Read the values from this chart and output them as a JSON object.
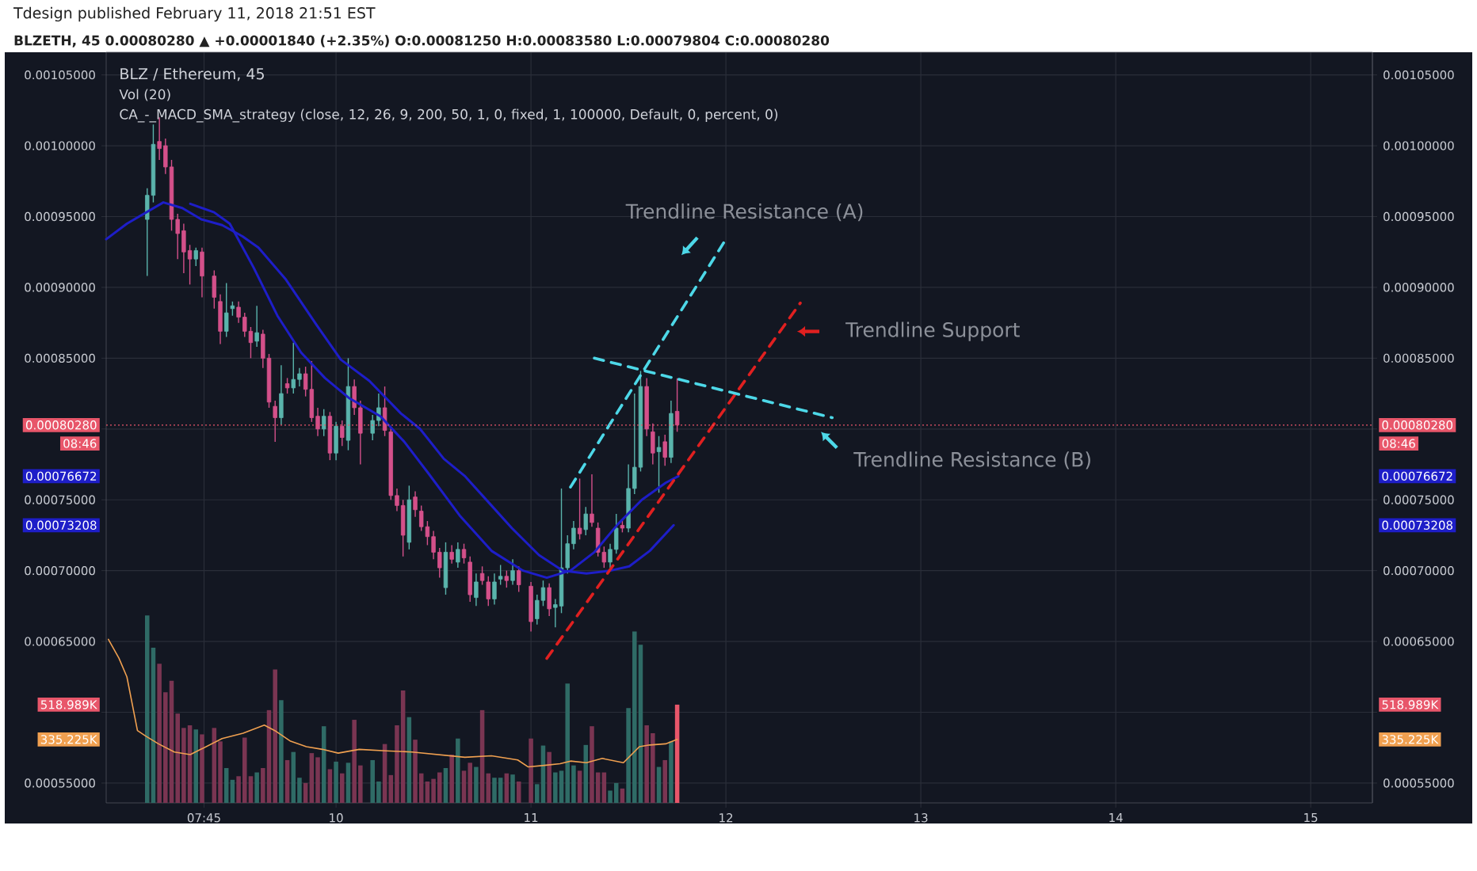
{
  "chart_data": {
    "type": "candlestick",
    "title": "Tdesign published February 11, 2018 21:51 EST",
    "subtitle": "BLZETH, 45 0.00080280 ▲ +0.00001840 (+2.35%) O:0.00081250 H:0.00083580 L:0.00079804 C:0.00080280",
    "annotations": [
      "BLZ / Ethereum, 45",
      "Vol (20)",
      "CA_-_MACD_SMA_strategy (close, 12, 26, 9, 200, 50, 1, 0, fixed, 1, 100000, Default, 0, percent, 0)",
      "08:46",
      "Trendline Resistance (A)",
      "Trendline Support",
      "Trendline Resistance (B)"
    ],
    "x": [
      "2018-02-09T00:45",
      "2018-02-09T01:30",
      "2018-02-09T02:15",
      "2018-02-09T03:00",
      "2018-02-09T03:45",
      "2018-02-09T04:30",
      "2018-02-09T05:15",
      "2018-02-09T06:00",
      "2018-02-09T06:45",
      "2018-02-09T07:30",
      "2018-02-09T09:00",
      "2018-02-09T09:45",
      "2018-02-09T10:30",
      "2018-02-09T11:15",
      "2018-02-09T12:00",
      "2018-02-09T12:45",
      "2018-02-09T13:30",
      "2018-02-09T14:15",
      "2018-02-09T15:00",
      "2018-02-09T15:45",
      "2018-02-09T16:30",
      "2018-02-09T17:15",
      "2018-02-09T18:00",
      "2018-02-09T18:45",
      "2018-02-09T19:30",
      "2018-02-09T20:15",
      "2018-02-09T21:00",
      "2018-02-09T21:45",
      "2018-02-09T22:30",
      "2018-02-09T23:15",
      "2018-02-10T00:00",
      "2018-02-10T00:45",
      "2018-02-10T01:30",
      "2018-02-10T02:15",
      "2018-02-10T03:00",
      "2018-02-10T04:30",
      "2018-02-10T05:15",
      "2018-02-10T06:00",
      "2018-02-10T06:45",
      "2018-02-10T07:30",
      "2018-02-10T08:15",
      "2018-02-10T09:00",
      "2018-02-10T09:45",
      "2018-02-10T10:30",
      "2018-02-10T11:15",
      "2018-02-10T12:00",
      "2018-02-10T12:45",
      "2018-02-10T13:30",
      "2018-02-10T14:15",
      "2018-02-10T15:00",
      "2018-02-10T15:45",
      "2018-02-10T16:30",
      "2018-02-10T17:15",
      "2018-02-10T18:00",
      "2018-02-10T18:45",
      "2018-02-10T19:30",
      "2018-02-10T20:15",
      "2018-02-10T21:00",
      "2018-02-10T21:45",
      "2018-02-10T22:30",
      "2018-02-11T00:00",
      "2018-02-11T00:45",
      "2018-02-11T01:30",
      "2018-02-11T02:15",
      "2018-02-11T03:00",
      "2018-02-11T03:45",
      "2018-02-11T04:30",
      "2018-02-11T05:15",
      "2018-02-11T06:00",
      "2018-02-11T06:45",
      "2018-02-11T07:30",
      "2018-02-11T08:15",
      "2018-02-11T09:00",
      "2018-02-11T09:45",
      "2018-02-11T10:30",
      "2018-02-11T11:15",
      "2018-02-11T12:00",
      "2018-02-11T12:45",
      "2018-02-11T13:30",
      "2018-02-11T14:15",
      "2018-02-11T15:00",
      "2018-02-11T15:45",
      "2018-02-11T16:30",
      "2018-02-11T17:15",
      "2018-02-11T18:00"
    ],
    "ohlc": [
      [
        0.000948,
        0.00097,
        0.000908,
        0.000965
      ],
      [
        0.000965,
        0.001015,
        0.00096,
        0.001001
      ],
      [
        0.001003,
        0.00102,
        0.00099,
        0.000998
      ],
      [
        0.001,
        0.001005,
        0.00098,
        0.000985
      ],
      [
        0.000985,
        0.00099,
        0.00094,
        0.000948
      ],
      [
        0.000948,
        0.000952,
        0.00092,
        0.000938
      ],
      [
        0.00094,
        0.000945,
        0.00091,
        0.000925
      ],
      [
        0.000926,
        0.00093,
        0.000902,
        0.00092
      ],
      [
        0.00092,
        0.000928,
        0.000915,
        0.000926
      ],
      [
        0.000925,
        0.000928,
        0.000893,
        0.000908
      ],
      [
        0.000908,
        0.000912,
        0.000885,
        0.000893
      ],
      [
        0.00089,
        0.000895,
        0.00086,
        0.000869
      ],
      [
        0.000869,
        0.000903,
        0.000865,
        0.000882
      ],
      [
        0.000885,
        0.00089,
        0.00088,
        0.000887
      ],
      [
        0.000886,
        0.00089,
        0.000875,
        0.000879
      ],
      [
        0.000879,
        0.000882,
        0.000865,
        0.000869
      ],
      [
        0.000869,
        0.000872,
        0.00085,
        0.000861
      ],
      [
        0.000862,
        0.000887,
        0.000858,
        0.000868
      ],
      [
        0.000867,
        0.00087,
        0.000843,
        0.00085
      ],
      [
        0.00085,
        0.000853,
        0.000815,
        0.000819
      ],
      [
        0.000816,
        0.00082,
        0.000791,
        0.000808
      ],
      [
        0.000808,
        0.000845,
        0.000803,
        0.000825
      ],
      [
        0.000832,
        0.000836,
        0.000825,
        0.000829
      ],
      [
        0.000829,
        0.000861,
        0.000825,
        0.000835
      ],
      [
        0.000835,
        0.000843,
        0.00083,
        0.000839
      ],
      [
        0.000839,
        0.000844,
        0.000823,
        0.000828
      ],
      [
        0.000828,
        0.000848,
        0.000805,
        0.000808
      ],
      [
        0.000809,
        0.000815,
        0.000795,
        0.0008
      ],
      [
        0.0008,
        0.000814,
        0.000795,
        0.000809
      ],
      [
        0.000809,
        0.000812,
        0.000778,
        0.000783
      ],
      [
        0.000783,
        0.000805,
        0.000778,
        0.000802
      ],
      [
        0.000802,
        0.000806,
        0.000788,
        0.000794
      ],
      [
        0.000792,
        0.00085,
        0.000785,
        0.00083
      ],
      [
        0.00083,
        0.000835,
        0.00081,
        0.000815
      ],
      [
        0.000815,
        0.00082,
        0.000775,
        0.000797
      ],
      [
        0.000797,
        0.00081,
        0.000792,
        0.000806
      ],
      [
        0.000806,
        0.000825,
        0.000802,
        0.000815
      ],
      [
        0.000815,
        0.00083,
        0.000795,
        0.000799
      ],
      [
        0.000798,
        0.000802,
        0.00075,
        0.000753
      ],
      [
        0.000753,
        0.000758,
        0.000742,
        0.000746
      ],
      [
        0.000746,
        0.00075,
        0.00071,
        0.000725
      ],
      [
        0.00072,
        0.00076,
        0.000715,
        0.00075
      ],
      [
        0.000752,
        0.000756,
        0.000738,
        0.000743
      ],
      [
        0.000742,
        0.000746,
        0.000728,
        0.000731
      ],
      [
        0.000731,
        0.000735,
        0.000718,
        0.000724
      ],
      [
        0.000724,
        0.000728,
        0.000708,
        0.000713
      ],
      [
        0.000713,
        0.000716,
        0.000695,
        0.000702
      ],
      [
        0.000688,
        0.00072,
        0.000683,
        0.000713
      ],
      [
        0.000713,
        0.000718,
        0.000705,
        0.000708
      ],
      [
        0.000706,
        0.00072,
        0.000702,
        0.000715
      ],
      [
        0.000715,
        0.000719,
        0.000705,
        0.000709
      ],
      [
        0.000706,
        0.00071,
        0.000678,
        0.000683
      ],
      [
        0.000681,
        0.000698,
        0.000675,
        0.000692
      ],
      [
        0.000698,
        0.000703,
        0.00069,
        0.000693
      ],
      [
        0.000692,
        0.000696,
        0.000675,
        0.00068
      ],
      [
        0.00068,
        0.000698,
        0.000676,
        0.000692
      ],
      [
        0.000694,
        0.000704,
        0.00069,
        0.000696
      ],
      [
        0.000696,
        0.0007,
        0.000688,
        0.000693
      ],
      [
        0.000693,
        0.000708,
        0.00069,
        0.0007
      ],
      [
        0.0007,
        0.000703,
        0.000685,
        0.00069
      ],
      [
        0.000689,
        0.000692,
        0.000657,
        0.000664
      ],
      [
        0.000666,
        0.000683,
        0.000662,
        0.000679
      ],
      [
        0.000679,
        0.000693,
        0.000675,
        0.000688
      ],
      [
        0.000688,
        0.000691,
        0.000668,
        0.000673
      ],
      [
        0.000674,
        0.00068,
        0.00066,
        0.000676
      ],
      [
        0.000675,
        0.000758,
        0.00067,
        0.000702
      ],
      [
        0.000702,
        0.000725,
        0.000698,
        0.000719
      ],
      [
        0.000719,
        0.000735,
        0.000715,
        0.00073
      ],
      [
        0.00073,
        0.000765,
        0.000722,
        0.000726
      ],
      [
        0.000729,
        0.000745,
        0.000725,
        0.00074
      ],
      [
        0.00074,
        0.000768,
        0.000731,
        0.000734
      ],
      [
        0.00073,
        0.000734,
        0.00071,
        0.000713
      ],
      [
        0.000713,
        0.000717,
        0.000702,
        0.000706
      ],
      [
        0.000706,
        0.000719,
        0.000702,
        0.000715
      ],
      [
        0.000715,
        0.00074,
        0.000712,
        0.00073
      ],
      [
        0.000732,
        0.000736,
        0.000727,
        0.00073
      ],
      [
        0.00073,
        0.000775,
        0.000727,
        0.000758
      ],
      [
        0.000758,
        0.000825,
        0.000754,
        0.000773
      ],
      [
        0.000773,
        0.000841,
        0.00077,
        0.00083
      ],
      [
        0.00083,
        0.000836,
        0.000795,
        0.0008
      ],
      [
        0.000798,
        0.000804,
        0.000775,
        0.000783
      ],
      [
        0.000784,
        0.000795,
        0.000755,
        0.000787
      ],
      [
        0.000791,
        0.000796,
        0.000774,
        0.00078
      ],
      [
        0.00078,
        0.00082,
        0.000776,
        0.000811
      ],
      [
        0.0008125,
        0.0008358,
        0.00079804,
        0.0008028
      ]
    ],
    "colors": [
      "#5ab4ac",
      "#5ab4ac",
      "#d4508a",
      "#d4508a",
      "#d4508a",
      "#d4508a",
      "#d4508a",
      "#d4508a",
      "#5ab4ac",
      "#d4508a",
      "#d4508a",
      "#d4508a",
      "#5ab4ac",
      "#5ab4ac",
      "#d4508a",
      "#d4508a",
      "#d4508a",
      "#5ab4ac",
      "#d4508a",
      "#d4508a",
      "#d4508a",
      "#5ab4ac",
      "#d4508a",
      "#5ab4ac",
      "#5ab4ac",
      "#d4508a",
      "#d4508a",
      "#d4508a",
      "#5ab4ac",
      "#d4508a",
      "#5ab4ac",
      "#d4508a",
      "#5ab4ac",
      "#d4508a",
      "#d4508a",
      "#5ab4ac",
      "#5ab4ac",
      "#d4508a",
      "#d4508a",
      "#d4508a",
      "#d4508a",
      "#5ab4ac",
      "#d4508a",
      "#d4508a",
      "#d4508a",
      "#d4508a",
      "#d4508a",
      "#5ab4ac",
      "#d4508a",
      "#5ab4ac",
      "#d4508a",
      "#d4508a",
      "#5ab4ac",
      "#d4508a",
      "#d4508a",
      "#5ab4ac",
      "#5ab4ac",
      "#d4508a",
      "#5ab4ac",
      "#d4508a",
      "#d4508a",
      "#5ab4ac",
      "#5ab4ac",
      "#d4508a",
      "#5ab4ac",
      "#5ab4ac",
      "#5ab4ac",
      "#5ab4ac",
      "#d4508a",
      "#5ab4ac",
      "#d4508a",
      "#d4508a",
      "#d4508a",
      "#5ab4ac",
      "#5ab4ac",
      "#d4508a",
      "#5ab4ac",
      "#5ab4ac",
      "#5ab4ac",
      "#d4508a",
      "#d4508a",
      "#5ab4ac",
      "#d4508a",
      "#5ab4ac",
      "#d4508a"
    ],
    "series": [
      {
        "type": "bar",
        "axis": "y3",
        "values": [
          990,
          820,
          735,
          585,
          645,
          472,
          396,
          410,
          388,
          362,
          396,
          325,
          184,
          122,
          141,
          345,
          141,
          161,
          184,
          490,
          705,
          543,
          226,
          269,
          133,
          105,
          263,
          241,
          405,
          178,
          218,
          156,
          212,
          439,
          198,
          226,
          113,
          311,
          147,
          410,
          594,
          453,
          334,
          156,
          113,
          127,
          161,
          184,
          255,
          340,
          170,
          212,
          190,
          490,
          156,
          133,
          133,
          156,
          150,
          113,
          340,
          99,
          303,
          269,
          161,
          170,
          631,
          198,
          170,
          306,
          405,
          161,
          161,
          65,
          105,
          76,
          501,
          906,
          835,
          410,
          368,
          190,
          226,
          325,
          518.989
        ],
        "colors": [
          "#2f6b66",
          "#2f6b66",
          "#7a3552",
          "#7a3552",
          "#7a3552",
          "#7a3552",
          "#7a3552",
          "#7a3552",
          "#2f6b66",
          "#7a3552",
          "#7a3552",
          "#7a3552",
          "#2f6b66",
          "#2f6b66",
          "#7a3552",
          "#7a3552",
          "#7a3552",
          "#2f6b66",
          "#7a3552",
          "#7a3552",
          "#7a3552",
          "#2f6b66",
          "#7a3552",
          "#2f6b66",
          "#2f6b66",
          "#7a3552",
          "#7a3552",
          "#7a3552",
          "#2f6b66",
          "#7a3552",
          "#2f6b66",
          "#7a3552",
          "#2f6b66",
          "#7a3552",
          "#7a3552",
          "#2f6b66",
          "#2f6b66",
          "#7a3552",
          "#7a3552",
          "#7a3552",
          "#7a3552",
          "#2f6b66",
          "#7a3552",
          "#7a3552",
          "#7a3552",
          "#7a3552",
          "#7a3552",
          "#2f6b66",
          "#7a3552",
          "#2f6b66",
          "#7a3552",
          "#7a3552",
          "#2f6b66",
          "#7a3552",
          "#7a3552",
          "#2f6b66",
          "#2f6b66",
          "#7a3552",
          "#2f6b66",
          "#7a3552",
          "#7a3552",
          "#2f6b66",
          "#2f6b66",
          "#7a3552",
          "#2f6b66",
          "#2f6b66",
          "#2f6b66",
          "#2f6b66",
          "#7a3552",
          "#2f6b66",
          "#7a3552",
          "#7a3552",
          "#7a3552",
          "#2f6b66",
          "#2f6b66",
          "#7a3552",
          "#2f6b66",
          "#2f6b66",
          "#2f6b66",
          "#7a3552",
          "#7a3552",
          "#2f6b66",
          "#7a3552",
          "#2f6b66",
          "#e8566a"
        ]
      },
      {
        "type": "line",
        "axis": "y3",
        "color": "#f0a050",
        "x": [
          "2018-02-08T19:58",
          "2018-02-08T21:16",
          "2018-02-08T22:15",
          "2018-02-08T23:33",
          "2018-02-09T00:32",
          "2018-02-09T02:08",
          "2018-02-09T04:06",
          "2018-02-09T06:03",
          "2018-02-09T07:21",
          "2018-02-09T09:58",
          "2018-02-09T12:33",
          "2018-02-09T15:10",
          "2018-02-09T16:28",
          "2018-02-09T18:24",
          "2018-02-09T20:21",
          "2018-02-09T22:19",
          "2018-02-10T00:16",
          "2018-02-10T02:51",
          "2018-02-10T06:07",
          "2018-02-10T09:22",
          "2018-02-10T12:37",
          "2018-02-10T15:52",
          "2018-02-10T19:08",
          "2018-02-10T22:22",
          "2018-02-10T23:40",
          "2018-02-11T01:38",
          "2018-02-11T03:35",
          "2018-02-11T04:52",
          "2018-02-11T06:50",
          "2018-02-11T08:47",
          "2018-02-11T11:23",
          "2018-02-11T13:21",
          "2018-02-11T14:38",
          "2018-02-11T16:35",
          "2018-02-11T18:00"
        ],
        "values": [
          864,
          765,
          666,
          382,
          354,
          312,
          269,
          255,
          283,
          340,
          368,
          411,
          382,
          326,
          297,
          283,
          263,
          283,
          275,
          269,
          255,
          241,
          249,
          227,
          190,
          198,
          207,
          221,
          212,
          235,
          212,
          297,
          306,
          312,
          335.225
        ]
      },
      {
        "type": "line",
        "color": "#1e1ec8",
        "x": [
          "2018-02-08T19:42",
          "2018-02-08T22:15",
          "2018-02-09T02:44",
          "2018-02-09T05:04",
          "2018-02-09T07:25",
          "2018-02-09T09:58",
          "2018-02-09T12:29",
          "2018-02-09T14:27",
          "2018-02-09T17:46",
          "2018-02-09T21:39",
          "2018-02-10T00:35",
          "2018-02-10T04:06",
          "2018-02-10T07:59",
          "2018-02-10T10:21",
          "2018-02-10T13:16",
          "2018-02-10T15:49",
          "2018-02-10T19:08",
          "2018-02-10T21:39",
          "2018-02-11T00:59",
          "2018-02-11T03:55",
          "2018-02-11T06:50",
          "2018-02-11T09:46",
          "2018-02-11T12:06",
          "2018-02-11T14:38",
          "2018-02-11T17:34"
        ],
        "values": [
          0.000934,
          0.000945,
          0.00096,
          0.000956,
          0.000948,
          0.000944,
          0.000936,
          0.000928,
          0.000906,
          0.000873,
          0.000849,
          0.000834,
          0.000811,
          0.0008,
          0.000779,
          0.000767,
          0.000746,
          0.00073,
          0.000711,
          0.0007,
          0.000698,
          0.0007,
          0.000703,
          0.000714,
          0.00073208
        ]
      },
      {
        "type": "line",
        "color": "#1e1ec8",
        "x": [
          "2018-02-09T06:03",
          "2018-02-09T08:59",
          "2018-02-09T10:55",
          "2018-02-09T13:51",
          "2018-02-09T16:47",
          "2018-02-09T19:42",
          "2018-02-09T22:38",
          "2018-02-10T01:34",
          "2018-02-10T05:28",
          "2018-02-10T08:24",
          "2018-02-10T11:20",
          "2018-02-10T15:13",
          "2018-02-10T19:08",
          "2018-02-10T23:01",
          "2018-02-11T01:57",
          "2018-02-11T04:52",
          "2018-02-11T07:48",
          "2018-02-11T10:44",
          "2018-02-11T13:39",
          "2018-02-11T16:35",
          "2018-02-11T18:09"
        ],
        "values": [
          0.000959,
          0.000953,
          0.000945,
          0.000914,
          0.00088,
          0.000854,
          0.000836,
          0.000822,
          0.000809,
          0.000791,
          0.000769,
          0.000739,
          0.000714,
          0.0007,
          0.000695,
          0.0007,
          0.000713,
          0.000733,
          0.00075,
          0.000762,
          0.00076672
        ]
      },
      {
        "type": "line",
        "color": "#4dd8e8",
        "line_style": "dashed",
        "x": [
          "2018-02-11T04:52",
          "2018-02-12T00:00"
        ],
        "values": [
          0.000759,
          0.000934
        ]
      },
      {
        "type": "line",
        "color": "#e02020",
        "line_style": "dashed",
        "x": [
          "2018-02-11T01:57",
          "2018-02-12T09:10"
        ],
        "values": [
          0.000638,
          0.000889
        ]
      },
      {
        "type": "line",
        "color": "#4dd8e8",
        "line_style": "dashed",
        "x": [
          "2018-02-11T07:48",
          "2018-02-12T13:05"
        ],
        "values": [
          0.00085,
          0.000808
        ]
      }
    ],
    "xlim": [
      "2018-02-08T19:42",
      "2018-02-15T07:36"
    ],
    "xticks": [
      {
        "value": "2018-02-09T07:45",
        "label": "07:45"
      },
      {
        "value": "2018-02-10",
        "label": "10"
      },
      {
        "value": "2018-02-11",
        "label": "11"
      },
      {
        "value": "2018-02-12",
        "label": "12"
      },
      {
        "value": "2018-02-13",
        "label": "13"
      },
      {
        "value": "2018-02-14",
        "label": "14"
      },
      {
        "value": "2018-02-15",
        "label": "15"
      }
    ],
    "ylim": [
      0.000536,
      0.001066
    ],
    "yticks": [
      {
        "value": 0.00073208,
        "label": "0.00073208"
      },
      {
        "value": 0.00076672,
        "label": "0.00076672"
      },
      {
        "value": 0.00055,
        "label": "0.00055000"
      },
      {
        "value": 0.0006,
        "label": null
      },
      {
        "value": 0.00065,
        "label": "0.00065000"
      },
      {
        "value": 0.0007,
        "label": "0.00070000"
      },
      {
        "value": 0.00075,
        "label": "0.00075000"
      },
      {
        "value": 0.0008,
        "label": null
      },
      {
        "value": 0.00085,
        "label": "0.00085000"
      },
      {
        "value": 0.0009,
        "label": "0.00090000"
      },
      {
        "value": 0.00095,
        "label": "0.00095000"
      },
      {
        "value": 0.001,
        "label": "0.00100000"
      },
      {
        "value": 0.00105,
        "label": "0.00105000"
      }
    ],
    "y2lim": [
      0.000536,
      0.001066
    ],
    "y2ticks": [
      {
        "value": 0.00073208,
        "label": "0.00073208"
      },
      {
        "value": 0.00076672,
        "label": "0.00076672"
      },
      {
        "value": 0.00055,
        "label": "0.00055000"
      },
      {
        "value": 0.0006,
        "label": null
      },
      {
        "value": 0.00065,
        "label": "0.00065000"
      },
      {
        "value": 0.0007,
        "label": "0.00070000"
      },
      {
        "value": 0.00075,
        "label": "0.00075000"
      },
      {
        "value": 0.0008,
        "label": null
      },
      {
        "value": 0.00085,
        "label": "0.00085000"
      },
      {
        "value": 0.0009,
        "label": "0.00090000"
      },
      {
        "value": 0.00095,
        "label": "0.00095000"
      },
      {
        "value": 0.001,
        "label": "0.00100000"
      },
      {
        "value": 0.00105,
        "label": "0.00105000"
      }
    ],
    "y3lim": [
      0,
      3965
    ],
    "y3ticks": [
      {
        "value": 518.989,
        "label": "518.989K"
      },
      {
        "value": 335.225,
        "label": "335.225K"
      }
    ],
    "ref_lines": [
      {
        "axis": "y",
        "value": 0.0008028,
        "label": "0.00080280",
        "color": "#e8566a",
        "line_style": "dotted"
      }
    ],
    "grid": true
  }
}
